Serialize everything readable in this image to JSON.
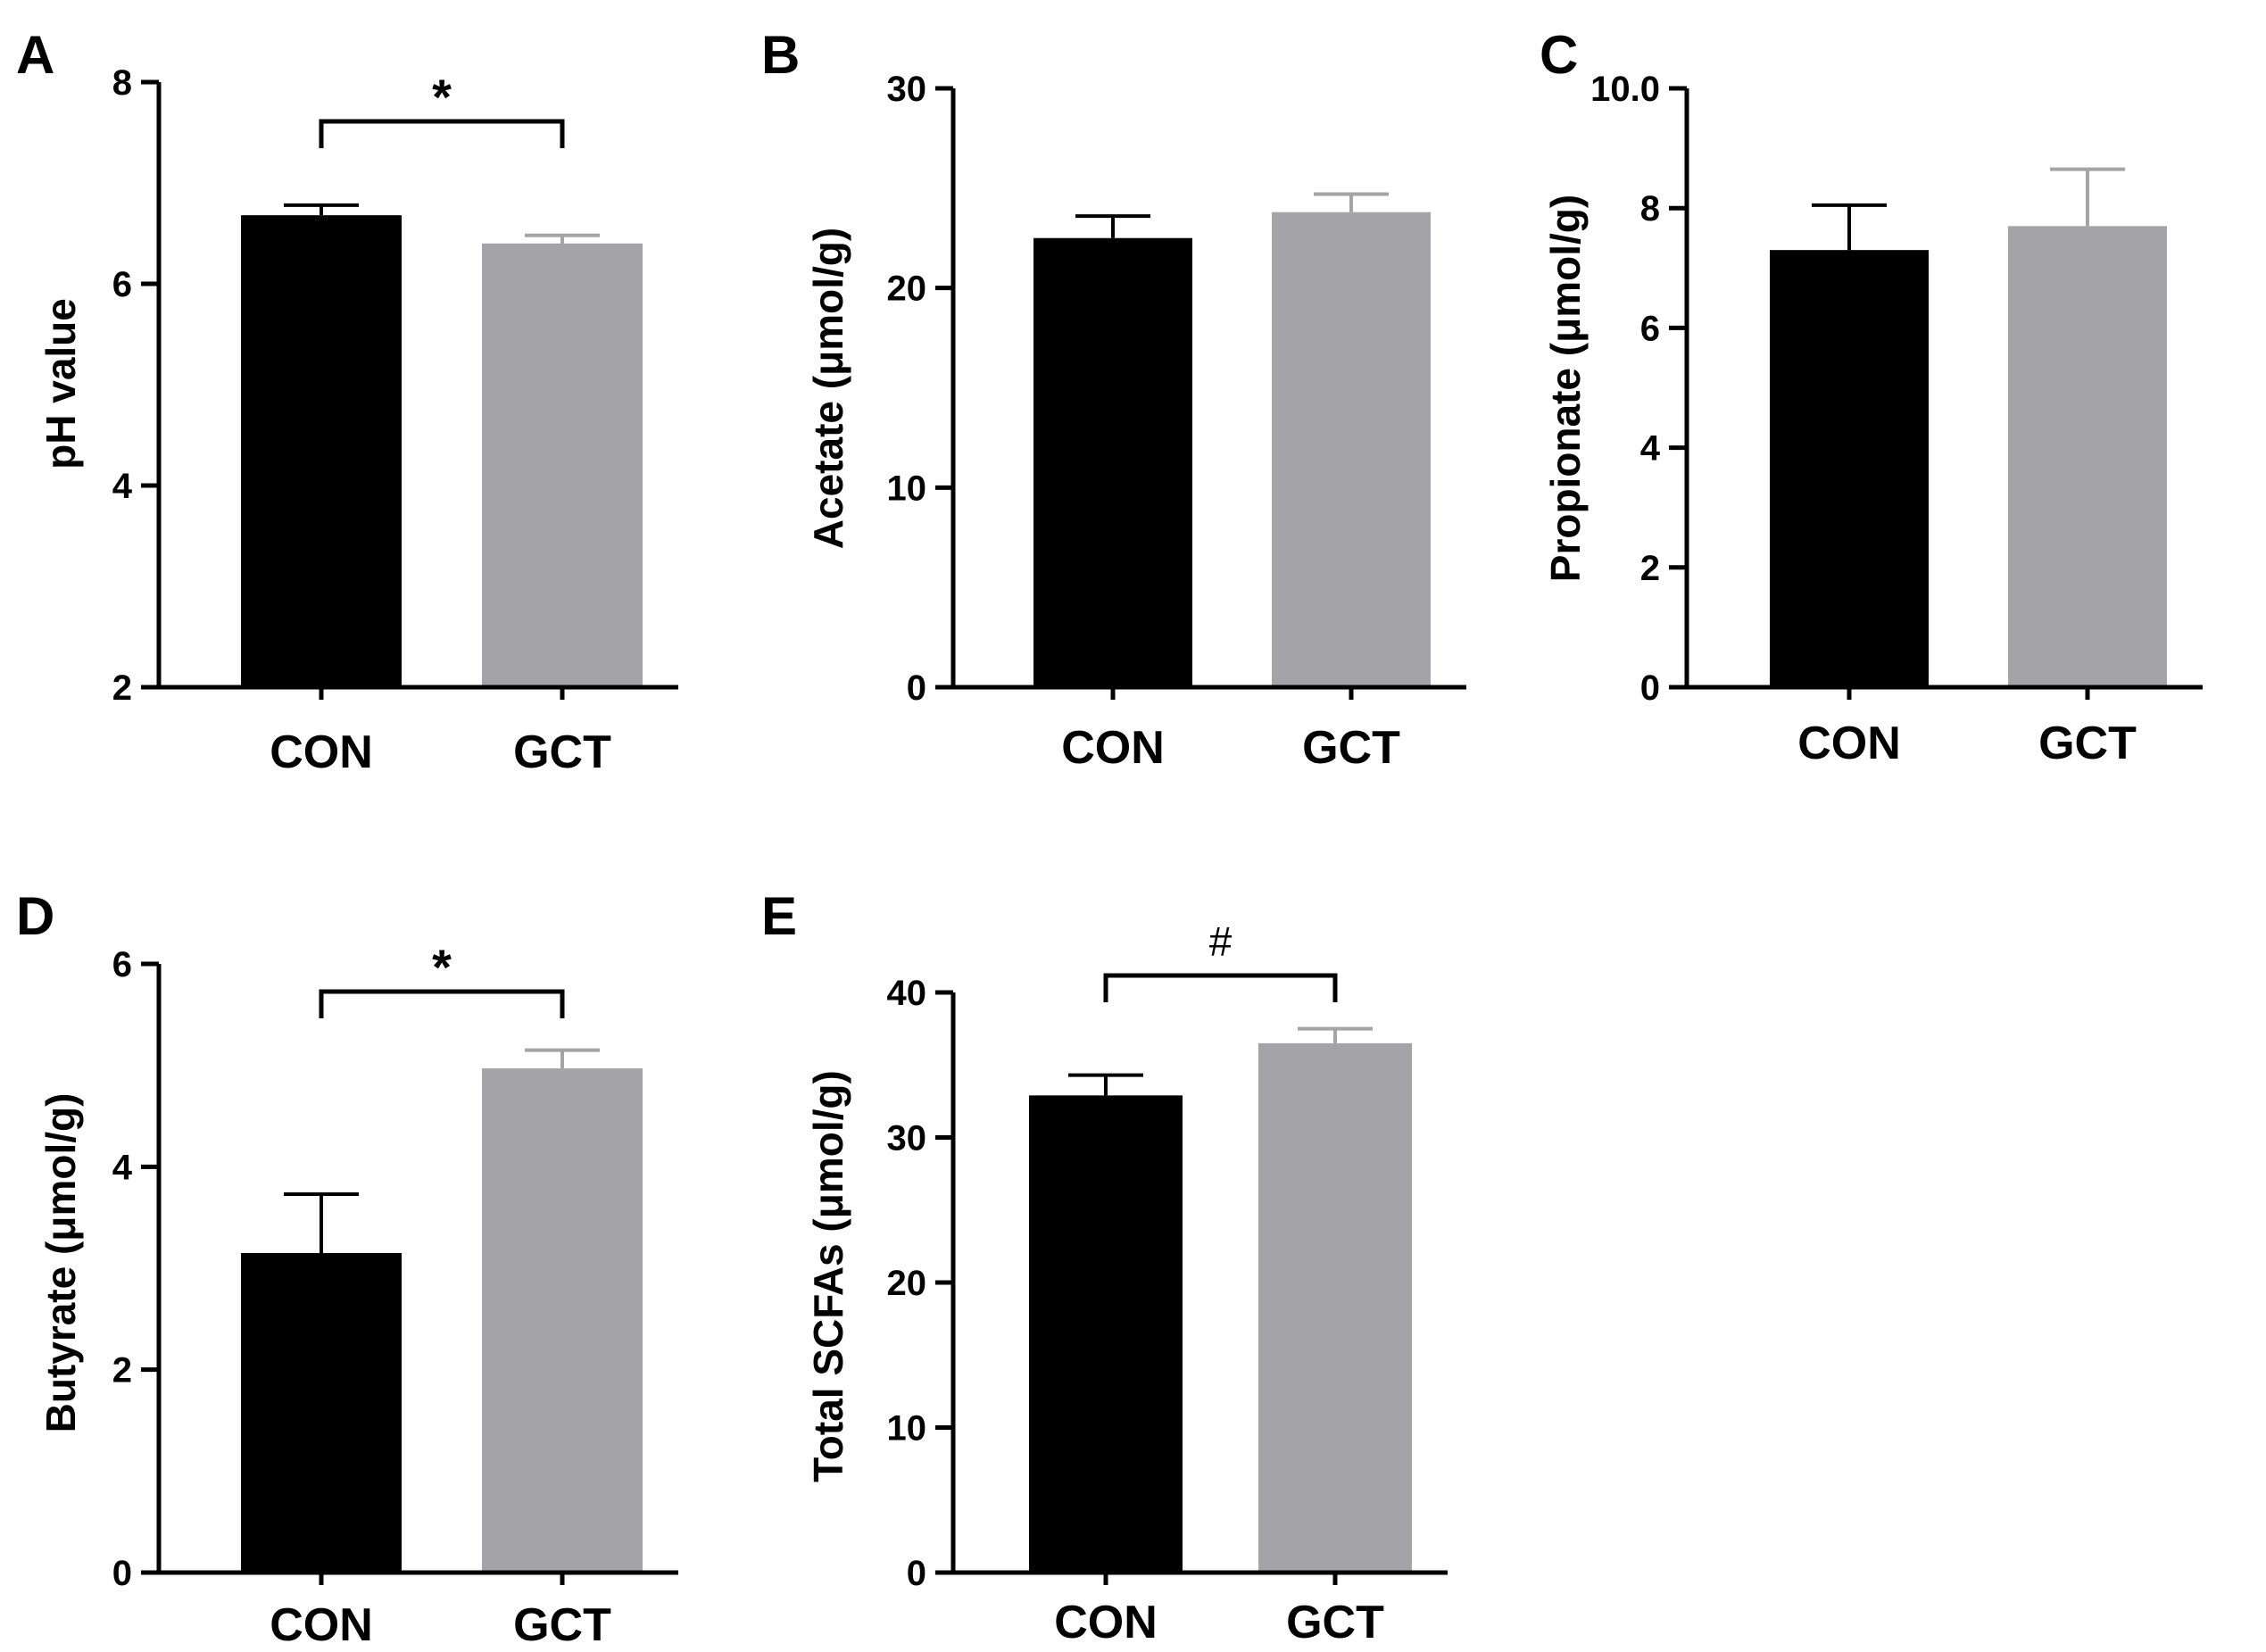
{
  "colors": {
    "CON": "#000000",
    "GCT": "#a3a3a8",
    "axis": "#000000"
  },
  "chart_data": [
    {
      "panel": "A",
      "type": "bar",
      "ylabel": "pH value",
      "categories": [
        "CON",
        "GCT"
      ],
      "values": [
        6.68,
        6.4
      ],
      "errors": [
        0.1,
        0.08
      ],
      "ylim": [
        2,
        8
      ],
      "yticks": [
        2,
        4,
        6,
        8
      ],
      "significance": {
        "label": "*",
        "between": [
          "CON",
          "GCT"
        ]
      }
    },
    {
      "panel": "B",
      "type": "bar",
      "ylabel": "Acetate (μmol/g)",
      "categories": [
        "CON",
        "GCT"
      ],
      "values": [
        22.5,
        23.8
      ],
      "errors": [
        1.1,
        0.9
      ],
      "ylim": [
        0,
        30
      ],
      "yticks": [
        0,
        10,
        20,
        30
      ],
      "significance": null
    },
    {
      "panel": "C",
      "type": "bar",
      "ylabel": "Propionate (μmol/g)",
      "categories": [
        "CON",
        "GCT"
      ],
      "values": [
        7.3,
        7.7
      ],
      "errors": [
        0.75,
        0.95
      ],
      "ylim": [
        0,
        10
      ],
      "yticks": [
        0,
        2,
        4,
        6,
        8,
        10
      ],
      "yticklabels": [
        "0",
        "2",
        "4",
        "6",
        "8",
        "10.0"
      ],
      "significance": null
    },
    {
      "panel": "D",
      "type": "bar",
      "ylabel": "Butyrate (μmol/g)",
      "categories": [
        "CON",
        "GCT"
      ],
      "values": [
        3.15,
        4.97
      ],
      "errors": [
        0.58,
        0.18
      ],
      "ylim": [
        0,
        6
      ],
      "yticks": [
        0,
        2,
        4,
        6
      ],
      "significance": {
        "label": "*",
        "between": [
          "CON",
          "GCT"
        ]
      }
    },
    {
      "panel": "E",
      "type": "bar",
      "ylabel": "Total SCFAs (μmol/g)",
      "categories": [
        "CON",
        "GCT"
      ],
      "values": [
        32.9,
        36.5
      ],
      "errors": [
        1.4,
        1.0
      ],
      "ylim": [
        0,
        40
      ],
      "yticks": [
        0,
        10,
        20,
        30,
        40
      ],
      "significance": {
        "label": "#",
        "between": [
          "CON",
          "GCT"
        ]
      }
    }
  ]
}
